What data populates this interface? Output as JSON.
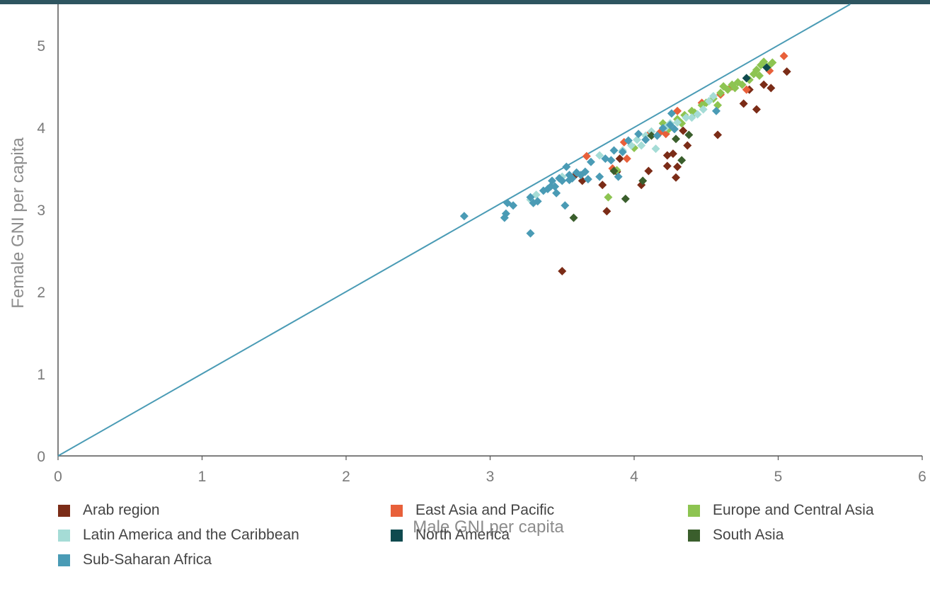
{
  "chart_data": {
    "type": "scatter",
    "xlabel": "Male GNI per capita",
    "ylabel": "Female GNI per capita",
    "xlim": [
      0,
      6
    ],
    "ylim": [
      0,
      5.5
    ],
    "xticks": [
      "0",
      "1",
      "2",
      "3",
      "4",
      "5",
      "6"
    ],
    "yticks": [
      "0",
      "1",
      "2",
      "3",
      "4",
      "5"
    ],
    "grid": false,
    "legend_position": "bottom",
    "reference_line": {
      "from": [
        0,
        0
      ],
      "to": [
        5.5,
        5.5
      ],
      "color": "#4a9bb5"
    },
    "series": [
      {
        "name": "Arab region",
        "color": "#7b2c17",
        "points": [
          [
            3.5,
            2.25
          ],
          [
            3.58,
            3.4
          ],
          [
            3.78,
            3.3
          ],
          [
            3.81,
            2.98
          ],
          [
            3.88,
            3.46
          ],
          [
            3.9,
            3.62
          ],
          [
            4.05,
            3.3
          ],
          [
            4.1,
            3.47
          ],
          [
            4.23,
            3.53
          ],
          [
            4.23,
            3.66
          ],
          [
            4.27,
            3.68
          ],
          [
            4.29,
            3.39
          ],
          [
            4.3,
            3.52
          ],
          [
            4.34,
            3.96
          ],
          [
            4.37,
            3.78
          ],
          [
            4.58,
            3.91
          ],
          [
            4.76,
            4.29
          ],
          [
            4.85,
            4.22
          ],
          [
            4.9,
            4.52
          ],
          [
            4.95,
            4.48
          ],
          [
            5.06,
            4.68
          ],
          [
            4.8,
            4.46
          ],
          [
            3.64,
            3.35
          ]
        ]
      },
      {
        "name": "East Asia and Pacific",
        "color": "#e8603a",
        "points": [
          [
            3.67,
            3.65
          ],
          [
            3.85,
            3.5
          ],
          [
            3.93,
            3.82
          ],
          [
            3.95,
            3.62
          ],
          [
            4.11,
            3.93
          ],
          [
            4.18,
            3.94
          ],
          [
            4.3,
            4.2
          ],
          [
            4.47,
            4.3
          ],
          [
            4.6,
            4.4
          ],
          [
            4.78,
            4.46
          ],
          [
            4.94,
            4.69
          ],
          [
            5.04,
            4.87
          ],
          [
            4.22,
            3.92
          ],
          [
            4.68,
            4.5
          ]
        ]
      },
      {
        "name": "Europe and Central Asia",
        "color": "#8dc451",
        "points": [
          [
            3.82,
            3.15
          ],
          [
            3.88,
            3.48
          ],
          [
            4.0,
            3.75
          ],
          [
            4.2,
            4.05
          ],
          [
            4.24,
            3.98
          ],
          [
            4.3,
            4.1
          ],
          [
            4.35,
            4.15
          ],
          [
            4.4,
            4.2
          ],
          [
            4.47,
            4.27
          ],
          [
            4.5,
            4.3
          ],
          [
            4.55,
            4.35
          ],
          [
            4.6,
            4.42
          ],
          [
            4.62,
            4.5
          ],
          [
            4.65,
            4.46
          ],
          [
            4.68,
            4.52
          ],
          [
            4.7,
            4.48
          ],
          [
            4.72,
            4.55
          ],
          [
            4.75,
            4.52
          ],
          [
            4.78,
            4.6
          ],
          [
            4.8,
            4.58
          ],
          [
            4.83,
            4.65
          ],
          [
            4.85,
            4.7
          ],
          [
            4.87,
            4.63
          ],
          [
            4.88,
            4.76
          ],
          [
            4.9,
            4.8
          ],
          [
            4.93,
            4.74
          ],
          [
            4.96,
            4.79
          ],
          [
            4.58,
            4.27
          ],
          [
            4.33,
            4.05
          ],
          [
            4.42,
            4.18
          ]
        ]
      },
      {
        "name": "Latin America and the Caribbean",
        "color": "#a5dcd6",
        "points": [
          [
            3.28,
            3.12
          ],
          [
            3.32,
            3.18
          ],
          [
            3.5,
            3.4
          ],
          [
            3.76,
            3.66
          ],
          [
            3.92,
            3.72
          ],
          [
            4.02,
            3.85
          ],
          [
            4.05,
            3.78
          ],
          [
            4.08,
            3.9
          ],
          [
            4.15,
            3.74
          ],
          [
            4.22,
            4.0
          ],
          [
            4.25,
            4.05
          ],
          [
            4.3,
            4.06
          ],
          [
            4.36,
            4.12
          ],
          [
            4.4,
            4.12
          ],
          [
            4.44,
            4.16
          ],
          [
            4.48,
            4.22
          ],
          [
            4.52,
            4.32
          ],
          [
            4.55,
            4.38
          ],
          [
            4.12,
            3.95
          ],
          [
            3.98,
            3.78
          ]
        ]
      },
      {
        "name": "North America",
        "color": "#0f4a4f",
        "points": [
          [
            4.78,
            4.6
          ],
          [
            4.92,
            4.73
          ]
        ]
      },
      {
        "name": "South Asia",
        "color": "#3a5e2c",
        "points": [
          [
            3.58,
            2.9
          ],
          [
            3.86,
            3.47
          ],
          [
            3.94,
            3.13
          ],
          [
            4.06,
            3.35
          ],
          [
            4.12,
            3.9
          ],
          [
            4.29,
            3.86
          ],
          [
            4.33,
            3.6
          ],
          [
            4.38,
            3.91
          ]
        ]
      },
      {
        "name": "Sub-Saharan Africa",
        "color": "#4a9bb5",
        "points": [
          [
            2.82,
            2.92
          ],
          [
            3.1,
            2.9
          ],
          [
            3.11,
            2.95
          ],
          [
            3.12,
            3.08
          ],
          [
            3.16,
            3.05
          ],
          [
            3.28,
            2.71
          ],
          [
            3.28,
            3.15
          ],
          [
            3.3,
            3.08
          ],
          [
            3.33,
            3.1
          ],
          [
            3.37,
            3.23
          ],
          [
            3.4,
            3.25
          ],
          [
            3.42,
            3.28
          ],
          [
            3.43,
            3.35
          ],
          [
            3.46,
            3.2
          ],
          [
            3.48,
            3.38
          ],
          [
            3.5,
            3.35
          ],
          [
            3.52,
            3.05
          ],
          [
            3.53,
            3.52
          ],
          [
            3.55,
            3.42
          ],
          [
            3.57,
            3.38
          ],
          [
            3.6,
            3.45
          ],
          [
            3.63,
            3.42
          ],
          [
            3.66,
            3.46
          ],
          [
            3.68,
            3.37
          ],
          [
            3.7,
            3.58
          ],
          [
            3.76,
            3.4
          ],
          [
            3.8,
            3.62
          ],
          [
            3.84,
            3.6
          ],
          [
            3.86,
            3.72
          ],
          [
            3.89,
            3.4
          ],
          [
            3.92,
            3.7
          ],
          [
            3.96,
            3.84
          ],
          [
            4.03,
            3.92
          ],
          [
            4.08,
            3.85
          ],
          [
            4.16,
            3.9
          ],
          [
            4.2,
            3.99
          ],
          [
            4.25,
            4.03
          ],
          [
            4.26,
            4.17
          ],
          [
            4.28,
            3.98
          ],
          [
            4.57,
            4.2
          ],
          [
            3.55,
            3.36
          ],
          [
            3.45,
            3.28
          ]
        ]
      }
    ]
  }
}
